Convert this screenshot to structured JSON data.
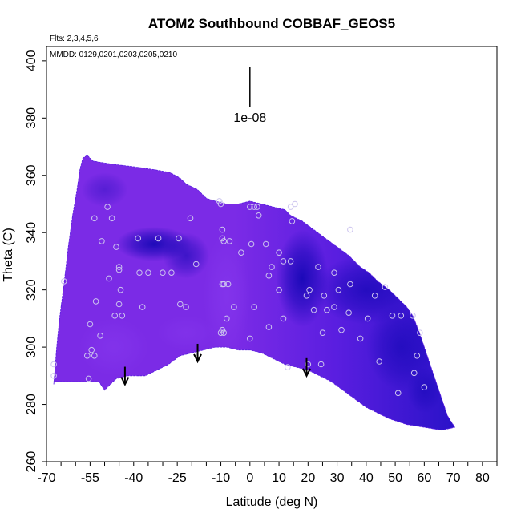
{
  "chart_data": {
    "type": "heatmap",
    "title": "ATOM2 Southbound COBBAF_GEOS5",
    "notes": {
      "flights": "Flts: 2,3,4,5,6",
      "dates": "MMDD: 0129,0201,0203,0205,0210"
    },
    "xlabel": "Latitude (deg N)",
    "ylabel": "Theta (C)",
    "xlim": [
      -70,
      85
    ],
    "ylim": [
      260,
      405
    ],
    "x_ticks": [
      -70,
      -55,
      -40,
      -25,
      -10,
      0,
      10,
      20,
      30,
      40,
      50,
      60,
      70,
      80
    ],
    "x_minor_ticks": [
      -65,
      -60,
      -50,
      -45,
      -35,
      -30,
      -20,
      -15,
      -5,
      5,
      15,
      25,
      35,
      45,
      55,
      65,
      75,
      85
    ],
    "y_ticks": [
      260,
      280,
      300,
      320,
      340,
      360,
      380,
      400
    ],
    "scale_bar": {
      "label": "1e-08",
      "lat": 0,
      "theta_top": 398,
      "theta_bottom": 384
    },
    "arrows": [
      {
        "lat": -43,
        "theta": 287
      },
      {
        "lat": -18,
        "theta": 295
      },
      {
        "lat": 19.5,
        "theta": 290
      }
    ],
    "colors": {
      "field_light": "#7b2be6",
      "field_mid": "#5a1ee0",
      "field_dark": "#2a12c8",
      "field_darkest": "#1306b4",
      "marker": "#ccc4ee",
      "arrow": "#000000"
    },
    "domain_upper": [
      [
        -67.5,
        287
      ],
      [
        -66.5,
        300
      ],
      [
        -65.5,
        310
      ],
      [
        -64,
        322
      ],
      [
        -62.5,
        335
      ],
      [
        -61,
        346
      ],
      [
        -59.5,
        355
      ],
      [
        -58.5,
        362
      ],
      [
        -57.5,
        366
      ],
      [
        -56,
        367
      ],
      [
        -54,
        365
      ],
      [
        -48,
        364
      ],
      [
        -40,
        363
      ],
      [
        -33,
        362
      ],
      [
        -27.5,
        361
      ],
      [
        -24,
        359
      ],
      [
        -22,
        357
      ],
      [
        -18,
        355
      ],
      [
        -15,
        352
      ],
      [
        -12,
        351
      ],
      [
        -8,
        350
      ],
      [
        -4,
        350
      ],
      [
        0,
        351
      ],
      [
        4,
        350
      ],
      [
        8,
        349
      ],
      [
        12,
        348
      ],
      [
        14,
        346
      ],
      [
        18,
        344
      ],
      [
        22,
        341
      ],
      [
        26,
        338
      ],
      [
        30,
        335
      ],
      [
        34,
        332
      ],
      [
        38,
        328
      ],
      [
        41,
        326
      ],
      [
        44,
        323
      ],
      [
        48,
        320
      ],
      [
        51,
        317
      ],
      [
        54,
        314
      ],
      [
        56,
        311
      ],
      [
        58,
        306
      ],
      [
        60,
        300
      ],
      [
        62,
        294
      ],
      [
        64,
        288
      ],
      [
        66,
        282
      ],
      [
        68,
        276
      ],
      [
        70.5,
        272
      ]
    ],
    "domain_lower": [
      [
        70.5,
        272
      ],
      [
        66,
        271
      ],
      [
        60,
        272
      ],
      [
        54,
        273
      ],
      [
        48,
        275
      ],
      [
        44,
        277
      ],
      [
        40,
        279
      ],
      [
        36,
        282
      ],
      [
        32,
        285
      ],
      [
        28,
        288
      ],
      [
        24,
        290
      ],
      [
        20,
        292
      ],
      [
        16,
        293
      ],
      [
        12,
        294
      ],
      [
        8,
        296
      ],
      [
        4,
        298
      ],
      [
        0,
        299
      ],
      [
        -4,
        299
      ],
      [
        -8,
        300
      ],
      [
        -12,
        300
      ],
      [
        -16,
        299
      ],
      [
        -20,
        298
      ],
      [
        -24,
        297
      ],
      [
        -28,
        294
      ],
      [
        -32,
        292
      ],
      [
        -36,
        290
      ],
      [
        -42,
        290
      ],
      [
        -46,
        289
      ],
      [
        -49,
        286
      ],
      [
        -50,
        285
      ],
      [
        -52,
        288
      ],
      [
        -60,
        288
      ],
      [
        -67.5,
        288
      ]
    ],
    "dark_regions": [
      {
        "lat": -33,
        "theta": 336,
        "rlat": 13,
        "rtheta": 6,
        "level": 0.9
      },
      {
        "lat": -22,
        "theta": 332,
        "rlat": 8,
        "rtheta": 8,
        "level": 0.6
      },
      {
        "lat": 18,
        "theta": 324,
        "rlat": 9,
        "rtheta": 17,
        "level": 0.9
      },
      {
        "lat": 40,
        "theta": 320,
        "rlat": 18,
        "rtheta": 12,
        "level": 0.7
      },
      {
        "lat": 52,
        "theta": 300,
        "rlat": 12,
        "rtheta": 15,
        "level": 0.6
      },
      {
        "lat": -50,
        "theta": 355,
        "rlat": 8,
        "rtheta": 6,
        "level": 0.35
      },
      {
        "lat": 60,
        "theta": 285,
        "rlat": 6,
        "rtheta": 8,
        "level": 0.5
      }
    ],
    "light_regions": [
      {
        "lat": -8,
        "theta": 318,
        "rlat": 8,
        "rtheta": 22,
        "level": 0.5
      },
      {
        "lat": -47,
        "theta": 300,
        "rlat": 12,
        "rtheta": 10,
        "level": 0.45
      },
      {
        "lat": -22,
        "theta": 305,
        "rlat": 10,
        "rtheta": 6,
        "level": 0.35
      }
    ],
    "obs_points": [
      [
        -64,
        323
      ],
      [
        -67.5,
        290
      ],
      [
        -67.5,
        294
      ],
      [
        -55.5,
        289
      ],
      [
        -56,
        297
      ],
      [
        -54.5,
        299
      ],
      [
        -53.5,
        297
      ],
      [
        -55,
        308
      ],
      [
        -53,
        316
      ],
      [
        -51.5,
        304
      ],
      [
        -49,
        349
      ],
      [
        -53.5,
        345
      ],
      [
        -51,
        337
      ],
      [
        -47.5,
        345
      ],
      [
        -46,
        335
      ],
      [
        -45,
        328
      ],
      [
        -45,
        327
      ],
      [
        -44.5,
        320
      ],
      [
        -45,
        315
      ],
      [
        -44,
        311
      ],
      [
        -46.5,
        311
      ],
      [
        -48.5,
        324
      ],
      [
        -38.5,
        338
      ],
      [
        -38,
        326
      ],
      [
        -35,
        326
      ],
      [
        -37,
        314
      ],
      [
        -31.5,
        338
      ],
      [
        -30,
        326
      ],
      [
        -27,
        326
      ],
      [
        -24.5,
        338
      ],
      [
        -24,
        315
      ],
      [
        -22,
        314
      ],
      [
        -20.5,
        345
      ],
      [
        -18.5,
        329
      ],
      [
        -10.5,
        351
      ],
      [
        -10,
        350
      ],
      [
        -9.5,
        341
      ],
      [
        -9.5,
        338
      ],
      [
        -9,
        337
      ],
      [
        -7,
        337
      ],
      [
        -7.5,
        322
      ],
      [
        -9,
        322
      ],
      [
        -9.5,
        322
      ],
      [
        -9.5,
        306
      ],
      [
        -9,
        305
      ],
      [
        -10,
        305
      ],
      [
        -8,
        310
      ],
      [
        -3,
        333
      ],
      [
        0,
        349
      ],
      [
        2.5,
        349
      ],
      [
        1.5,
        349
      ],
      [
        3,
        346
      ],
      [
        0.5,
        336
      ],
      [
        1.5,
        314
      ],
      [
        0,
        303
      ],
      [
        5.5,
        336
      ],
      [
        7.5,
        328
      ],
      [
        6.5,
        325
      ],
      [
        6.5,
        307
      ],
      [
        -5.5,
        314
      ],
      [
        10,
        333
      ],
      [
        11.5,
        330
      ],
      [
        14,
        330
      ],
      [
        10,
        320
      ],
      [
        11.5,
        310
      ],
      [
        13,
        293
      ],
      [
        14.5,
        344
      ],
      [
        14,
        349
      ],
      [
        15.5,
        350
      ],
      [
        20.5,
        320
      ],
      [
        19.5,
        318
      ],
      [
        22,
        313
      ],
      [
        23.5,
        328
      ],
      [
        25.5,
        318
      ],
      [
        26.5,
        313
      ],
      [
        25,
        305
      ],
      [
        24.5,
        294
      ],
      [
        29,
        326
      ],
      [
        30.5,
        320
      ],
      [
        31.5,
        306
      ],
      [
        34,
        312
      ],
      [
        34.5,
        322
      ],
      [
        38,
        303
      ],
      [
        40.5,
        310
      ],
      [
        44.5,
        295
      ],
      [
        46.5,
        321
      ],
      [
        49,
        311
      ],
      [
        52,
        311
      ],
      [
        51,
        284
      ],
      [
        56,
        311
      ],
      [
        58.5,
        305
      ],
      [
        57.5,
        297
      ],
      [
        56.5,
        291
      ],
      [
        60,
        286
      ],
      [
        20,
        294
      ],
      [
        43,
        318
      ],
      [
        34.5,
        341
      ],
      [
        29,
        314
      ]
    ]
  }
}
